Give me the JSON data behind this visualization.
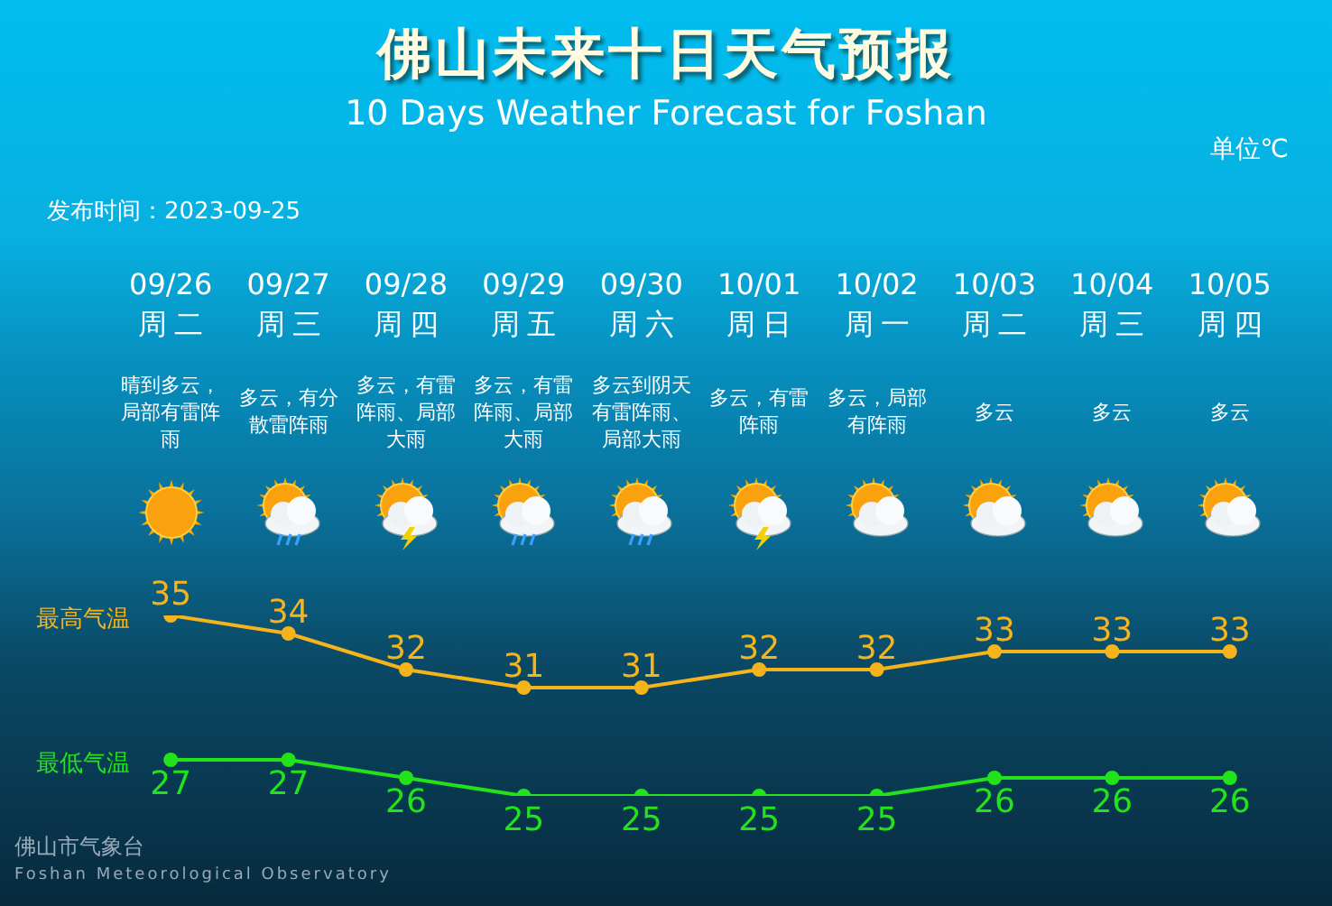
{
  "chart_data": {
    "type": "line",
    "title": "佛山未来十日天气预报",
    "subtitle": "10 Days Weather Forecast for Foshan",
    "ylabel": "单位℃",
    "categories": [
      "09/26",
      "09/27",
      "09/28",
      "09/29",
      "09/30",
      "10/01",
      "10/02",
      "10/03",
      "10/04",
      "10/05"
    ],
    "series": [
      {
        "name": "最高气温",
        "color": "#f5b41c",
        "values": [
          35,
          34,
          32,
          31,
          31,
          32,
          32,
          33,
          33,
          33
        ]
      },
      {
        "name": "最低气温",
        "color": "#22e31a",
        "values": [
          27,
          27,
          26,
          25,
          25,
          25,
          25,
          26,
          26,
          26
        ]
      }
    ],
    "data_labels": true,
    "marker": "circle",
    "line_style": "solid",
    "annotations": [
      "发布时间：2023-09-25",
      "佛山市气象台",
      "Foshan Meteorological Observatory",
      "周二",
      "晴到多云，局部有雷阵雨",
      "周三",
      "多云，有分散雷阵雨",
      "周四",
      "多云，有雷阵雨、局部大雨",
      "周五",
      "多云，有雷阵雨、局部大雨",
      "周六",
      "多云到阴天有雷阵雨、局部大雨",
      "周日",
      "多云，有雷阵雨",
      "周一",
      "多云，局部有阵雨",
      "周二",
      "多云",
      "周三",
      "多云",
      "周四",
      "多云"
    ]
  }
}
